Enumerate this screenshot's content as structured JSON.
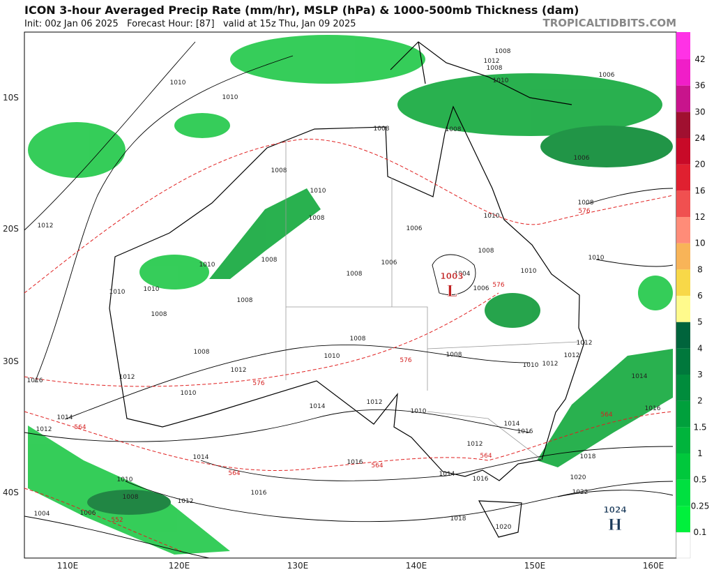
{
  "header": {
    "title": "ICON 3-hour Averaged Precip Rate (mm/hr), MSLP (hPa) & 1000-500mb Thickness (dam)",
    "subtitle": "Init: 00z Jan 06 2025   Forecast Hour: [87]   valid at 15z Thu, Jan 09 2025",
    "watermark": "TROPICALTIDBITS.COM"
  },
  "map": {
    "lat_labels": [
      "10S",
      "20S",
      "30S",
      "40S"
    ],
    "lon_labels": [
      "110E",
      "120E",
      "130E",
      "140E",
      "150E",
      "160E"
    ],
    "pressure_centers": [
      {
        "label": "L",
        "value": "1003"
      },
      {
        "label": "H",
        "value": "1024"
      }
    ],
    "isobar_labels": [
      "1010",
      "1010",
      "1008",
      "1008",
      "1008",
      "1010",
      "1008",
      "1006",
      "1012",
      "1010",
      "1008",
      "1006",
      "1008",
      "1004",
      "1006",
      "1008",
      "1010",
      "1010",
      "1010",
      "1010",
      "1008",
      "1008",
      "1008",
      "1008",
      "1010",
      "1008",
      "1010",
      "1012",
      "1012",
      "1012",
      "1014",
      "1016",
      "1012",
      "1010",
      "1012",
      "1014",
      "1012",
      "1010",
      "1014",
      "1012",
      "1014",
      "1016",
      "1012",
      "1014",
      "1016",
      "1014",
      "1016",
      "1018",
      "1016",
      "1010",
      "1008",
      "1012",
      "1004",
      "1006",
      "1016",
      "1020",
      "1022",
      "1018",
      "1020",
      "1008",
      "1010",
      "1006",
      "1006",
      "1008",
      "1012",
      "1008",
      "1010"
    ],
    "thickness_labels": [
      "576",
      "576",
      "576",
      "576",
      "564",
      "564",
      "564",
      "564",
      "564",
      "552"
    ]
  },
  "colorbar": {
    "labels": [
      "0.1",
      "0.25",
      "0.5",
      "1",
      "1.5",
      "2",
      "3",
      "4",
      "5",
      "6",
      "8",
      "10",
      "12",
      "16",
      "20",
      "24",
      "30",
      "36",
      "42"
    ]
  }
}
